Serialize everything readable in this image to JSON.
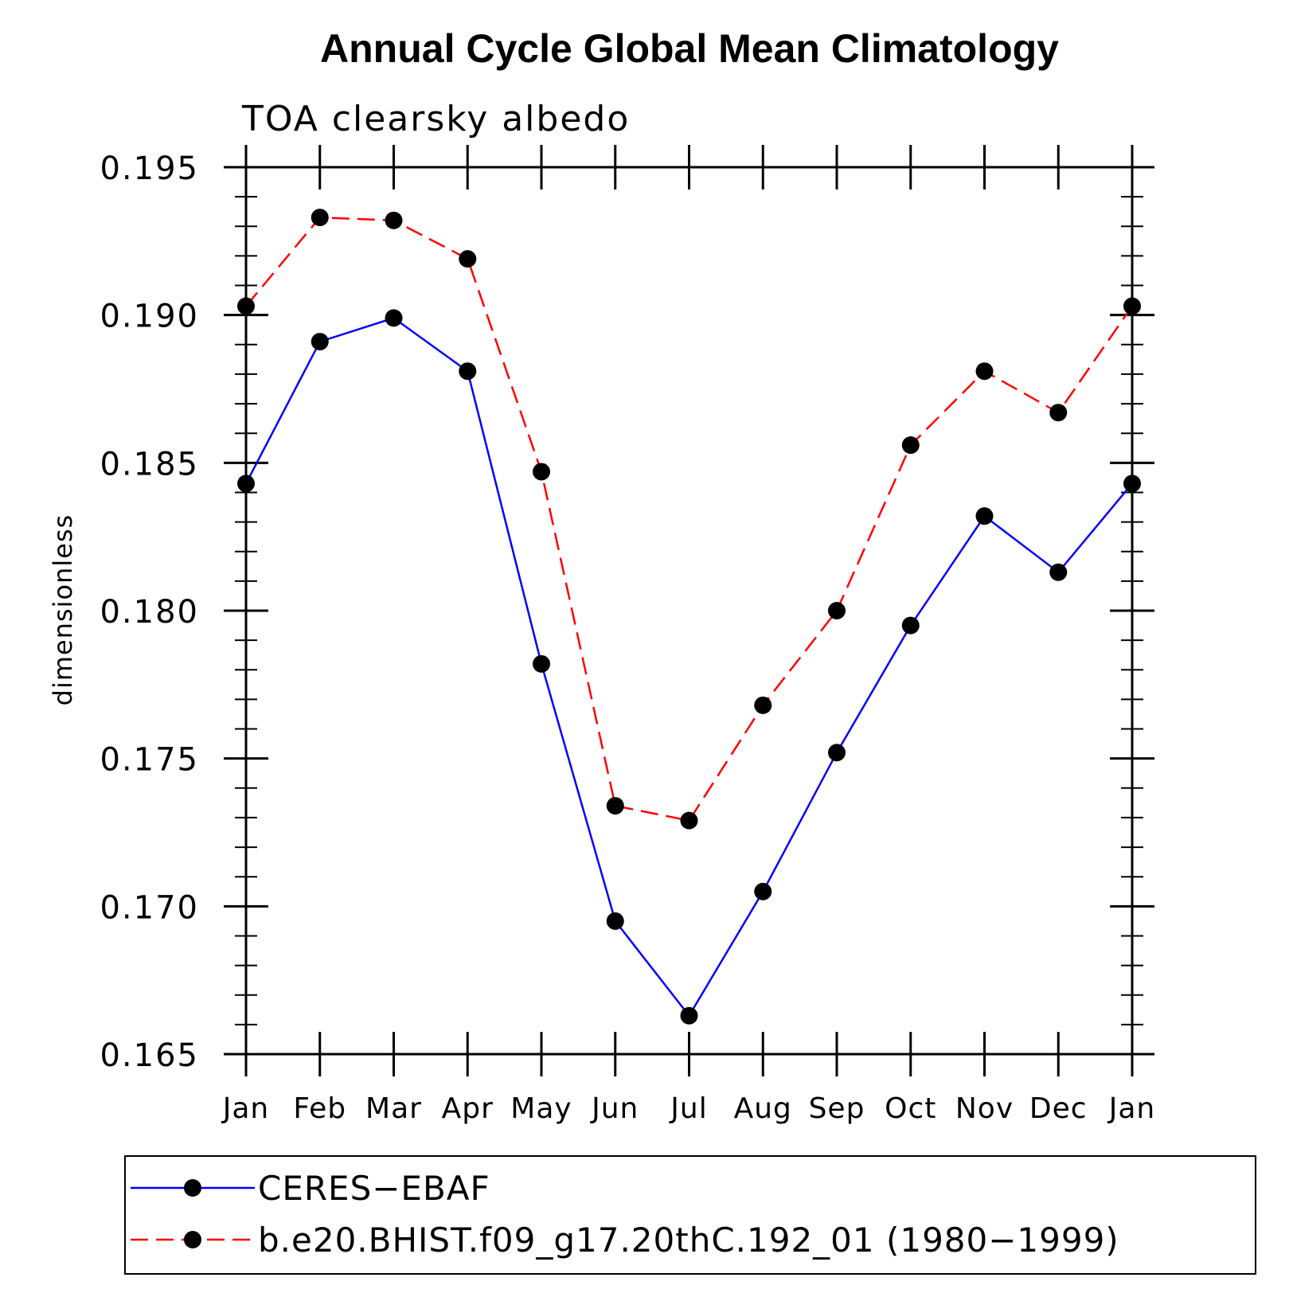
{
  "chart_data": {
    "type": "line",
    "title": "Annual Cycle Global Mean Climatology",
    "subtitle": "TOA clearsky albedo",
    "ylabel": "dimensionless",
    "xlabel": "",
    "categories": [
      "Jan",
      "Feb",
      "Mar",
      "Apr",
      "May",
      "Jun",
      "Jul",
      "Aug",
      "Sep",
      "Oct",
      "Nov",
      "Dec",
      "Jan"
    ],
    "ylim": [
      0.165,
      0.195
    ],
    "yticks": [
      "0.165",
      "0.170",
      "0.175",
      "0.180",
      "0.185",
      "0.190",
      "0.195"
    ],
    "ytick_values": [
      0.165,
      0.17,
      0.175,
      0.18,
      0.185,
      0.19,
      0.195
    ],
    "series": [
      {
        "name": "CERES−EBAF",
        "color": "#0000ff",
        "style": "solid",
        "marker": "filled-circle",
        "values": [
          0.1843,
          0.1891,
          0.1899,
          0.1881,
          0.1782,
          0.1695,
          0.1663,
          0.1705,
          0.1752,
          0.1795,
          0.1832,
          0.1813,
          0.1843
        ]
      },
      {
        "name": "b.e20.BHIST.f09_g17.20thC.192_01 (1980−1999)",
        "color": "#ff0000",
        "style": "dashed",
        "marker": "filled-circle",
        "values": [
          0.1903,
          0.1933,
          0.1932,
          0.1919,
          0.1847,
          0.1734,
          0.1729,
          0.1768,
          0.18,
          0.1856,
          0.1881,
          0.1867,
          0.1903
        ]
      }
    ],
    "grid": false,
    "legend_position": "bottom"
  }
}
